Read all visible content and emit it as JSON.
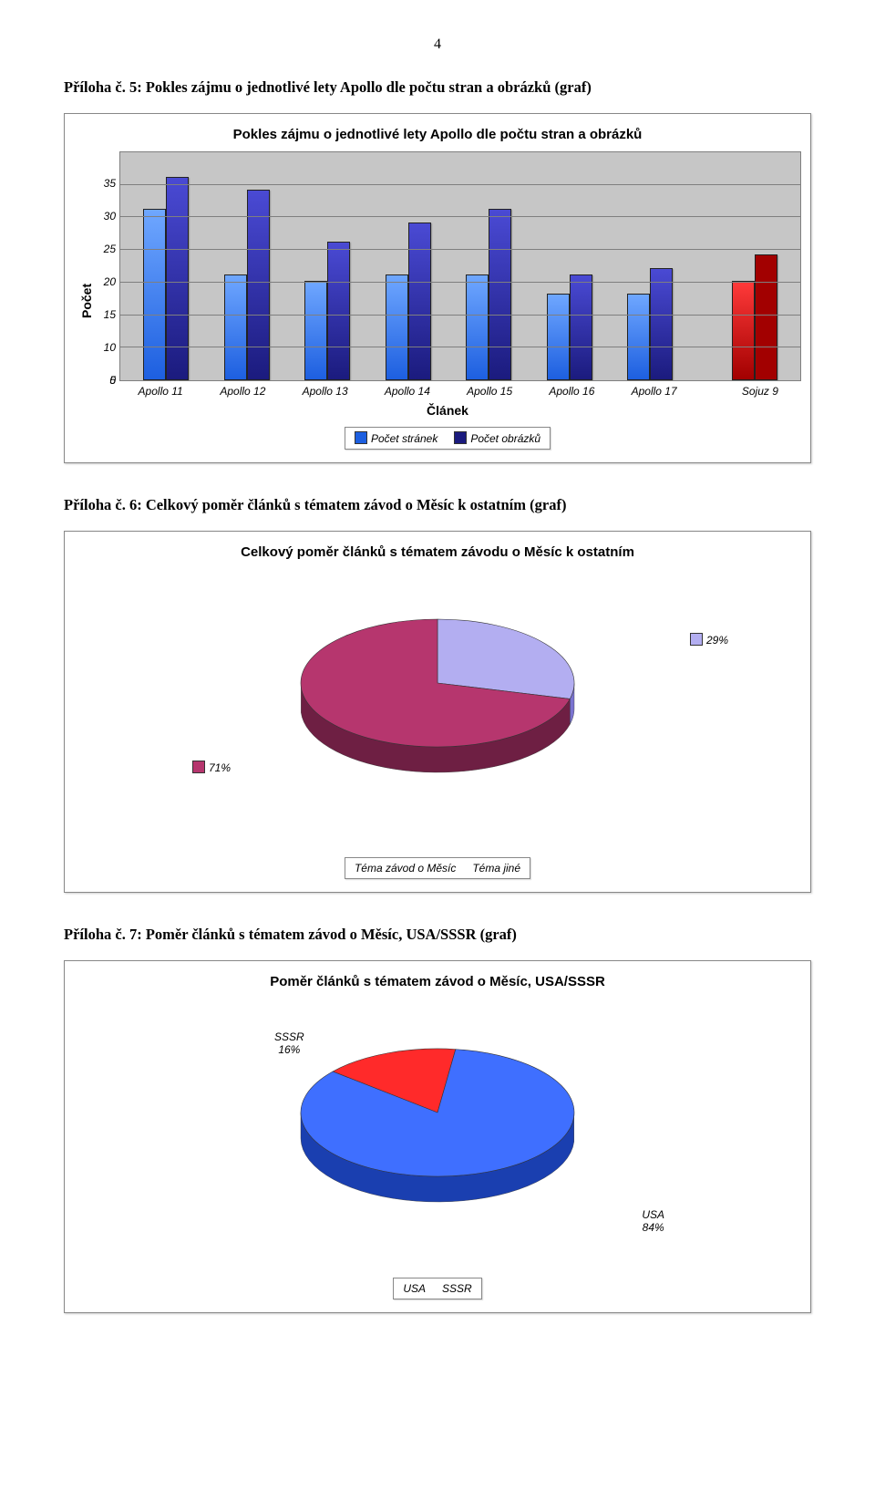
{
  "page_number": "4",
  "bar_chart": {
    "section_title": "Příloha č. 5: Pokles zájmu o jednotlivé lety Apollo dle počtu stran a obrázků (graf)",
    "title": "Pokles zájmu o jednotlivé lety Apollo dle počtu stran a obrázků",
    "y_label": "Počet",
    "x_label": "Článek",
    "ylim_max": 35,
    "ytick_step": 5,
    "yticks": [
      "0",
      "5",
      "10",
      "15",
      "20",
      "25",
      "30",
      "35"
    ],
    "categories": [
      "Apollo 11",
      "Apollo 12",
      "Apollo 13",
      "Apollo 14",
      "Apollo 15",
      "Apollo 16",
      "Apollo 17"
    ],
    "extra_category": "Sojuz 9",
    "series": [
      {
        "name": "Počet stránek",
        "color_light": "#6fa7ff",
        "color_dark": "#1d5fe0"
      },
      {
        "name": "Počet obrázků",
        "color_light": "#4a4ad4",
        "color_dark": "#1b1b7e"
      }
    ],
    "values_pages": [
      26,
      16,
      15,
      16,
      16,
      13,
      13
    ],
    "values_images": [
      31,
      29,
      21,
      24,
      26,
      16,
      17
    ],
    "extra_values_pages": 15,
    "extra_values_images": 19,
    "extra_colors": {
      "light": "#ff3a3a",
      "dark": "#a20000"
    },
    "plot_bg": "#c6c6c6",
    "grid_color": "#7f7f7f",
    "text_color": "#000000",
    "font_italic_size": 12,
    "label_font_size": 14,
    "title_font_size": 15
  },
  "pie1": {
    "section_title": "Příloha č. 6: Celkový poměr článků s tématem závod o Měsíc k ostatním (graf)",
    "title": "Celkový poměr článků s tématem závodu o Měsíc k ostatním",
    "slices": [
      {
        "label": "29%",
        "color_light": "#b3aef1",
        "color_dark": "#7a73d0",
        "value": 29,
        "legend": "Téma závod o Měsíc"
      },
      {
        "label": "71%",
        "color_light": "#b6366e",
        "color_dark": "#6e1f43",
        "value": 71,
        "legend": "Téma jiné"
      }
    ]
  },
  "pie2": {
    "section_title": "Příloha č. 7: Poměr článků s tématem závod o Měsíc, USA/SSSR (graf)",
    "title": "Poměr článků s tématem závod o Měsíc, USA/SSSR",
    "slices": [
      {
        "label": "USA",
        "pct": "84%",
        "color_light": "#3f6fff",
        "color_dark": "#1a3fb0",
        "value": 84,
        "legend": "USA"
      },
      {
        "label": "SSSR",
        "pct": "16%",
        "color_light": "#ff2a2a",
        "color_dark": "#9b0000",
        "value": 16,
        "legend": "SSSR"
      }
    ]
  }
}
